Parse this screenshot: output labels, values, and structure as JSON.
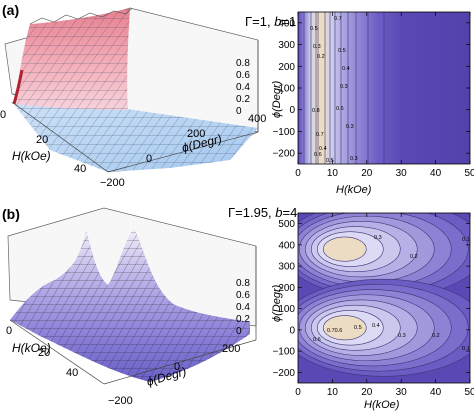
{
  "panels": [
    {
      "label": "(a)",
      "annotation": {
        "gamma": "Γ=1,",
        "b": "b",
        "b_value": "=1"
      },
      "surface": {
        "x_label": "H(kOe)",
        "y_label": "ϕ(Degr)",
        "x_ticks": [
          "0",
          "20",
          "40"
        ],
        "y_ticks": [
          "400",
          "200",
          "0",
          "−200"
        ],
        "z_ticks": [
          "0",
          "0.2",
          "0.4",
          "0.6",
          "0.8"
        ]
      },
      "contour": {
        "x_label": "H(kOe)",
        "y_label": "ϕ(Degr)",
        "x_ticks": [
          "0",
          "10",
          "20",
          "30",
          "40",
          "50"
        ],
        "y_ticks": [
          "400",
          "300",
          "200",
          "100",
          "0",
          "−100",
          "−200"
        ],
        "level_labels": [
          "0.5",
          "0.3",
          "0.2",
          "0.7",
          "0.5",
          "0.4",
          "0.3",
          "0.6",
          "0.8",
          "0.3",
          "0.7",
          "0.4",
          "0.6",
          "0.5",
          "0.3"
        ]
      }
    },
    {
      "label": "(b)",
      "annotation": {
        "gamma": "Γ=1.95,",
        "b": "b",
        "b_value": "=4"
      },
      "surface": {
        "x_label": "H(kOe)",
        "y_label": "ϕ(Degr)",
        "x_ticks": [
          "0",
          "20",
          "40"
        ],
        "y_ticks": [
          "200",
          "0",
          "−200"
        ],
        "z_ticks": [
          "0",
          "0.2",
          "0.4",
          "0.6",
          "0.8"
        ]
      },
      "contour": {
        "x_label": "H(kOe)",
        "y_label": "ϕ(Degr)",
        "x_ticks": [
          "0",
          "10",
          "20",
          "30",
          "40",
          "50"
        ],
        "y_ticks": [
          "500",
          "400",
          "300",
          "200",
          "100",
          "0",
          "−100",
          "−200"
        ],
        "level_labels": [
          "0.3",
          "0.2",
          "0.1",
          "0.70.6",
          "0.5",
          "0.4",
          "0.6",
          "0.3",
          "0.2",
          "0.1"
        ]
      }
    }
  ],
  "colors": {
    "contour_outer": "#5a49b4",
    "contour_mid": "#8d82d4",
    "contour_inner": "#cfd1ee",
    "contour_peak": "#ecdcc4",
    "surface_a_ridge": "#f2aab5",
    "surface_a_floor": "#b4d4f2",
    "surface_b_peak": "#f4eefa",
    "surface_b_low": "#6a60c8"
  },
  "chart_data": [
    {
      "type": "surface3d",
      "panel": "(a) left",
      "title": "Γ=1, b=1",
      "xlabel": "H(kOe)",
      "ylabel": "ϕ(Degr)",
      "xlim": [
        0,
        50
      ],
      "ylim": [
        -200,
        400
      ],
      "zlim": [
        0,
        0.8
      ],
      "description_values": {
        "ridge_H_kOe": 6,
        "ridge_height": 0.95,
        "floor_value": 0.05
      }
    },
    {
      "type": "contour",
      "panel": "(a) right",
      "xlabel": "H(kOe)",
      "ylabel": "ϕ(Degr)",
      "xlim": [
        0,
        50
      ],
      "ylim": [
        -250,
        450
      ],
      "levels": [
        0.1,
        0.2,
        0.3,
        0.4,
        0.5,
        0.6,
        0.7,
        0.8
      ],
      "peak_H_kOe": 6,
      "labeled_levels": [
        0.5,
        0.3,
        0.2,
        0.7,
        0.5,
        0.4,
        0.3,
        0.6,
        0.8,
        0.3,
        0.7,
        0.4,
        0.6,
        0.5,
        0.3
      ]
    },
    {
      "type": "surface3d",
      "panel": "(b) left",
      "title": "Γ=1.95, b=4",
      "xlabel": "H(kOe)",
      "ylabel": "ϕ(Degr)",
      "xlim": [
        0,
        50
      ],
      "ylim": [
        -200,
        300
      ],
      "zlim": [
        0,
        0.8
      ],
      "description_values": {
        "peak_phi_degr": [
          0,
          360
        ],
        "peak_H_kOe": 12,
        "peak_height": 0.85
      }
    },
    {
      "type": "contour",
      "panel": "(b) right",
      "xlabel": "H(kOe)",
      "ylabel": "ϕ(Degr)",
      "xlim": [
        0,
        50
      ],
      "ylim": [
        -250,
        550
      ],
      "levels": [
        0.1,
        0.2,
        0.3,
        0.4,
        0.5,
        0.6,
        0.7,
        0.8
      ],
      "peaks": [
        {
          "H_kOe": 12,
          "phi_degr": 380
        },
        {
          "H_kOe": 12,
          "phi_degr": 10
        }
      ],
      "labeled_levels": [
        0.3,
        0.2,
        0.1,
        0.7,
        0.6,
        0.5,
        0.4,
        0.6,
        0.3,
        0.2,
        0.1
      ]
    }
  ]
}
